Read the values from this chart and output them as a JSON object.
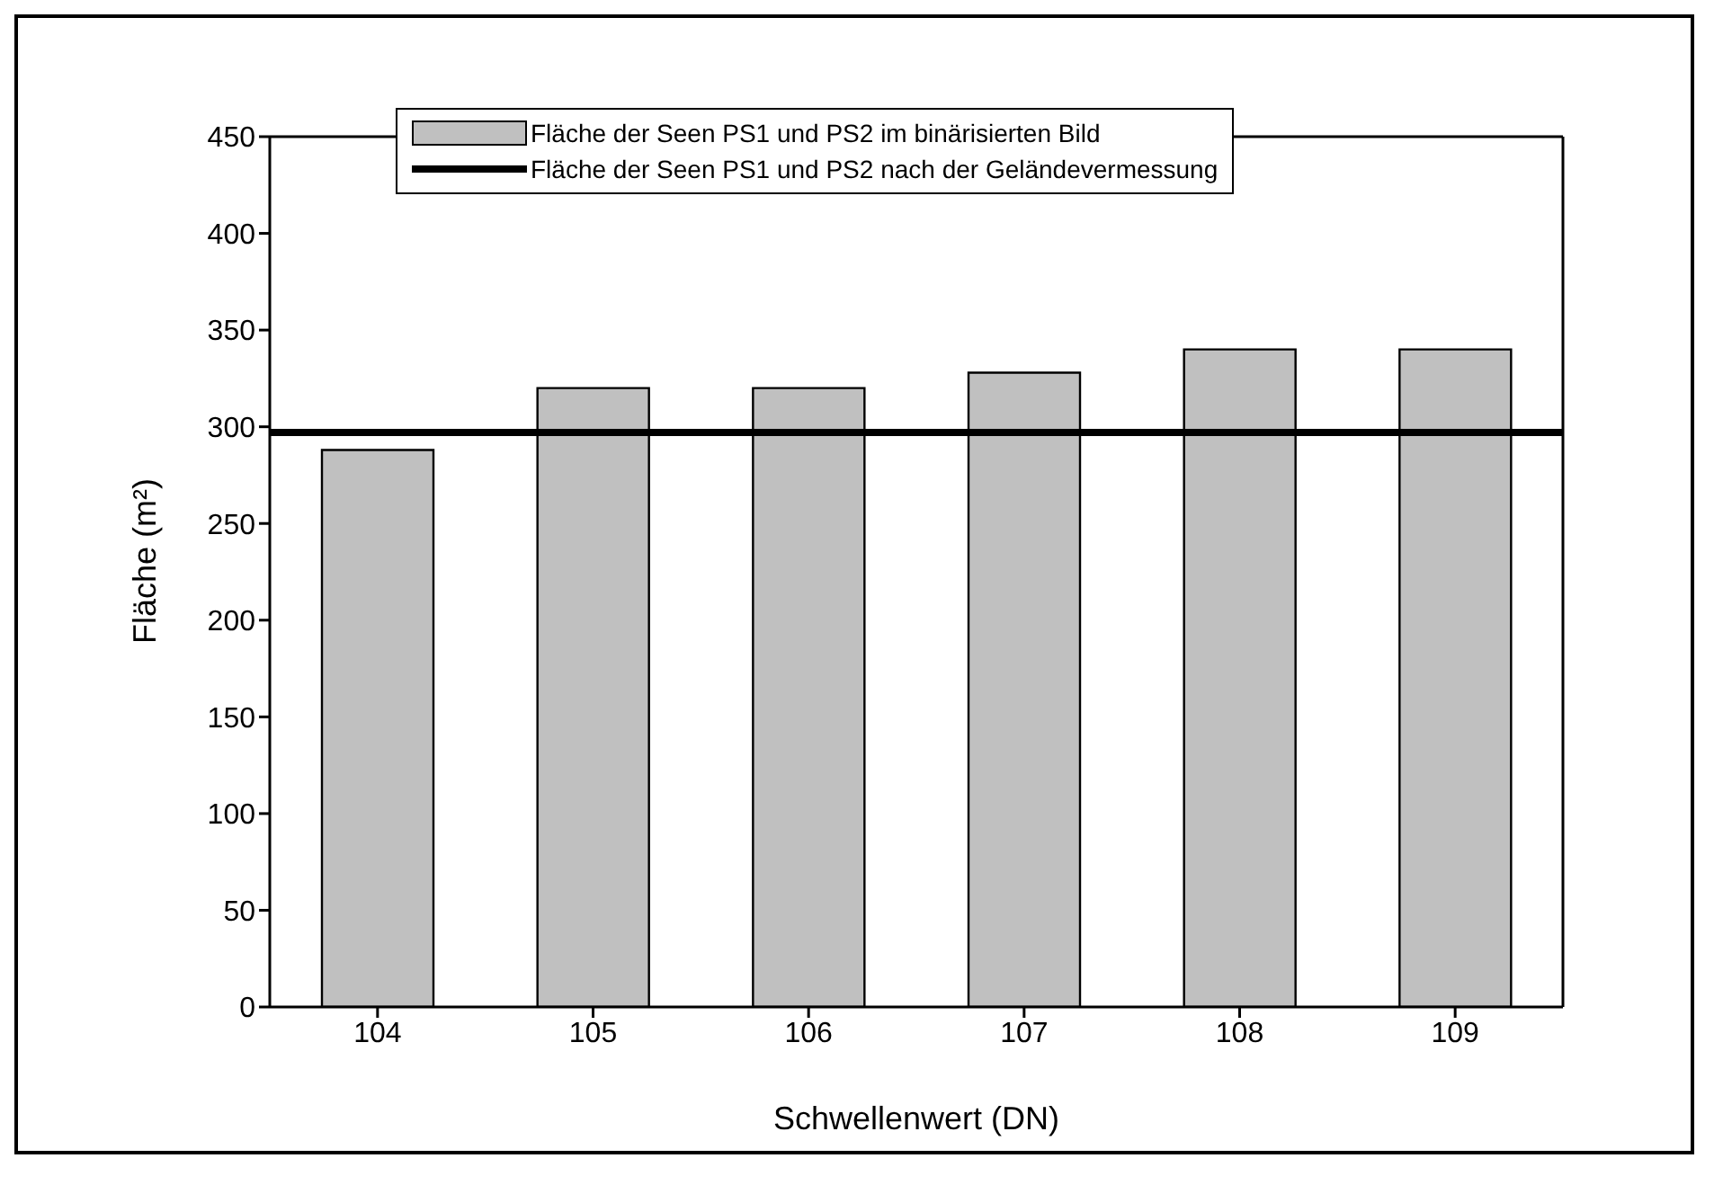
{
  "chart_data": {
    "type": "bar",
    "xlabel": "Schwellenwert (DN)",
    "ylabel": "Fläche (m²)",
    "categories": [
      "104",
      "105",
      "106",
      "107",
      "108",
      "109"
    ],
    "series": [
      {
        "name": "Fläche der Seen PS1 und PS2 im binärisierten Bild",
        "color": "#c0c0c0",
        "values": [
          288,
          320,
          320,
          328,
          340,
          340
        ]
      }
    ],
    "ref_lines": [
      {
        "axis": "y",
        "value": 297,
        "label": "Fläche der Seen PS1 und PS2 nach der Geländevermessung",
        "color": "#000000"
      }
    ],
    "ylim": [
      0,
      450
    ],
    "yticks": [
      0,
      50,
      100,
      150,
      200,
      250,
      300,
      350,
      400,
      450
    ],
    "legend": "top"
  }
}
